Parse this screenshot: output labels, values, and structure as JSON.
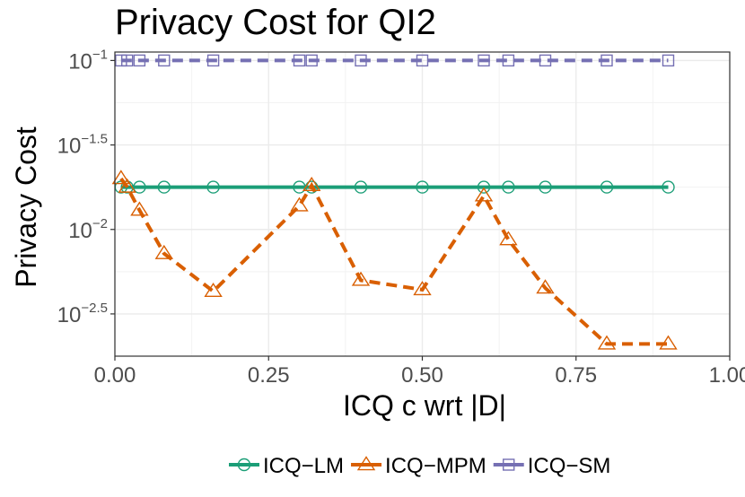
{
  "chart_data": {
    "type": "line",
    "title": "Privacy Cost for QI2",
    "xlabel": "ICQ c wrt |D|",
    "ylabel": "Privacy Cost",
    "y_scale": "log10",
    "xlim": [
      0,
      1
    ],
    "ylim_log10": [
      -2.75,
      -0.95
    ],
    "grid": true,
    "legend_position": "bottom",
    "x_ticks": [
      0.0,
      0.25,
      0.5,
      0.75,
      1.0
    ],
    "x_tick_labels": [
      "0.00",
      "0.25",
      "0.50",
      "0.75",
      "1.00"
    ],
    "y_ticks_log10": [
      -1,
      -1.5,
      -2,
      -2.5
    ],
    "y_tick_labels": [
      {
        "base": "10",
        "exp": "−1"
      },
      {
        "base": "10",
        "exp": "−1.5"
      },
      {
        "base": "10",
        "exp": "−2"
      },
      {
        "base": "10",
        "exp": "−2.5"
      }
    ],
    "series": [
      {
        "name": "ICQ−LM",
        "color": "#1b9e77",
        "marker": "circle",
        "linestyle": "solid",
        "x": [
          0.01,
          0.02,
          0.04,
          0.08,
          0.16,
          0.3,
          0.32,
          0.4,
          0.5,
          0.6,
          0.64,
          0.7,
          0.8,
          0.9
        ],
        "y": [
          0.0178,
          0.0178,
          0.0178,
          0.0178,
          0.0178,
          0.0178,
          0.0178,
          0.0178,
          0.0178,
          0.0178,
          0.0178,
          0.0178,
          0.0178,
          0.0178
        ]
      },
      {
        "name": "ICQ−MPM",
        "color": "#d95f02",
        "marker": "triangle",
        "linestyle": "dashed",
        "x": [
          0.01,
          0.02,
          0.04,
          0.08,
          0.16,
          0.3,
          0.32,
          0.4,
          0.5,
          0.6,
          0.64,
          0.7,
          0.8,
          0.9
        ],
        "y": [
          0.02,
          0.0178,
          0.013,
          0.0072,
          0.0043,
          0.0138,
          0.0182,
          0.005,
          0.0044,
          0.0158,
          0.0087,
          0.0045,
          0.0021,
          0.0021
        ]
      },
      {
        "name": "ICQ−SM",
        "color": "#7570b3",
        "marker": "square",
        "linestyle": "dashed",
        "x": [
          0.01,
          0.02,
          0.04,
          0.08,
          0.16,
          0.3,
          0.32,
          0.4,
          0.5,
          0.6,
          0.64,
          0.7,
          0.8,
          0.9
        ],
        "y": [
          0.1,
          0.1,
          0.1,
          0.1,
          0.1,
          0.1,
          0.1,
          0.1,
          0.1,
          0.1,
          0.1,
          0.1,
          0.1,
          0.1
        ]
      }
    ]
  }
}
